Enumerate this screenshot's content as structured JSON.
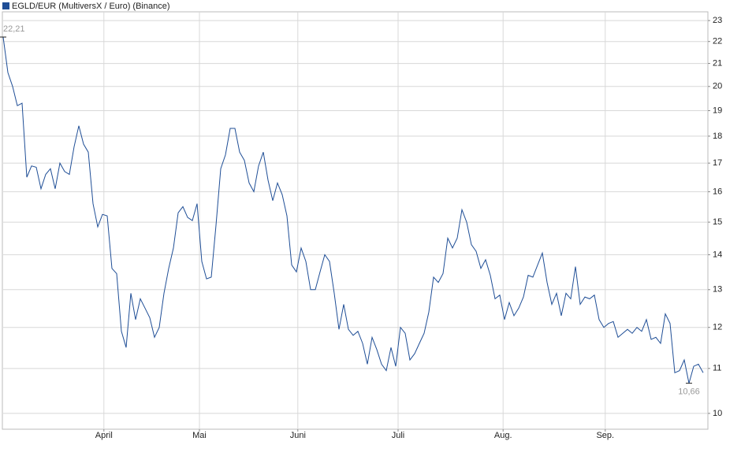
{
  "chart_data": {
    "type": "line",
    "legend": "EGLD/EUR (MultiversX / Euro) (Binance)",
    "color": "#1f4e96",
    "log_scale": true,
    "grid": true,
    "ylim": [
      9.67,
      23.43
    ],
    "yticks": [
      10,
      11,
      12,
      13,
      14,
      15,
      16,
      17,
      18,
      19,
      20,
      21,
      22,
      23
    ],
    "xlim": [
      0,
      149
    ],
    "xticks": [
      {
        "value": 21.3,
        "label": "April"
      },
      {
        "value": 41.5,
        "label": "Mai"
      },
      {
        "value": 62.3,
        "label": "Juni"
      },
      {
        "value": 83.5,
        "label": "Juli"
      },
      {
        "value": 105.7,
        "label": "Aug."
      },
      {
        "value": 127.3,
        "label": "Sep."
      }
    ],
    "values": [
      22.21,
      20.6,
      20.0,
      19.2,
      19.3,
      16.5,
      16.9,
      16.85,
      16.1,
      16.6,
      16.8,
      16.1,
      17.0,
      16.7,
      16.6,
      17.6,
      18.4,
      17.7,
      17.4,
      15.6,
      14.85,
      15.25,
      15.2,
      13.6,
      13.45,
      11.9,
      11.5,
      12.9,
      12.2,
      12.75,
      12.5,
      12.25,
      11.75,
      12.0,
      12.9,
      13.6,
      14.2,
      15.3,
      15.5,
      15.15,
      15.05,
      15.6,
      13.8,
      13.3,
      13.35,
      14.9,
      16.8,
      17.3,
      18.3,
      18.3,
      17.4,
      17.1,
      16.3,
      16.0,
      16.9,
      17.4,
      16.4,
      15.7,
      16.3,
      15.9,
      15.2,
      13.7,
      13.5,
      14.2,
      13.8,
      13.0,
      13.0,
      13.5,
      14.0,
      13.8,
      12.9,
      11.95,
      12.6,
      11.95,
      11.8,
      11.9,
      11.6,
      11.1,
      11.75,
      11.45,
      11.1,
      10.95,
      11.5,
      11.05,
      12.0,
      11.85,
      11.2,
      11.35,
      11.6,
      11.85,
      12.4,
      13.35,
      13.2,
      13.45,
      14.5,
      14.2,
      14.5,
      15.4,
      15.0,
      14.3,
      14.1,
      13.6,
      13.85,
      13.4,
      12.75,
      12.85,
      12.2,
      12.65,
      12.3,
      12.5,
      12.8,
      13.4,
      13.35,
      13.7,
      14.05,
      13.2,
      12.6,
      12.9,
      12.3,
      12.9,
      12.75,
      13.65,
      12.6,
      12.8,
      12.75,
      12.85,
      12.2,
      12.0,
      12.1,
      12.15,
      11.75,
      11.85,
      11.95,
      11.85,
      12.0,
      11.9,
      12.2,
      11.7,
      11.75,
      11.6,
      12.35,
      12.1,
      10.9,
      10.95,
      11.2,
      10.66,
      11.05,
      11.1,
      10.9
    ],
    "value_labels": [
      "22,21",
      null,
      null,
      null,
      null,
      null,
      null,
      null,
      null,
      null,
      null,
      null,
      null,
      null,
      null,
      null,
      null,
      null,
      null,
      null,
      null,
      null,
      null,
      null,
      null,
      null,
      null,
      null,
      null,
      null,
      null,
      null,
      null,
      null,
      null,
      null,
      null,
      null,
      null,
      null,
      null,
      null,
      null,
      null,
      null,
      null,
      null,
      null,
      null,
      null,
      null,
      null,
      null,
      null,
      null,
      null,
      null,
      null,
      null,
      null,
      null,
      null,
      null,
      null,
      null,
      null,
      null,
      null,
      null,
      null,
      null,
      null,
      null,
      null,
      null,
      null,
      null,
      null,
      null,
      null,
      null,
      null,
      null,
      null,
      null,
      null,
      null,
      null,
      null,
      null,
      null,
      null,
      null,
      null,
      null,
      null,
      null,
      null,
      null,
      null,
      null,
      null,
      null,
      null,
      null,
      null,
      null,
      null,
      null,
      null,
      null,
      null,
      null,
      null,
      null,
      null,
      null,
      null,
      null,
      null,
      null,
      null,
      null,
      null,
      null,
      null,
      null,
      null,
      null,
      null,
      null,
      null,
      null,
      null,
      null,
      null,
      null,
      null,
      null,
      null,
      null,
      null,
      null,
      null,
      null,
      "10,66",
      null,
      null,
      null
    ]
  }
}
